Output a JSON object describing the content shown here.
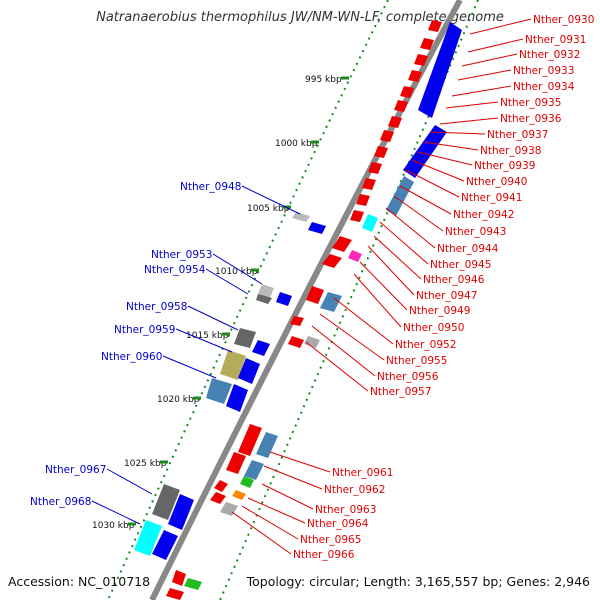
{
  "title": "Natranaerobius thermophilus JW/NM-WN-LF, complete genome",
  "accession": "Accession: NC_010718",
  "summary": "Topology: circular; Length: 3,165,557 bp; Genes: 2,946",
  "ticks": [
    "995 kbp",
    "1000 kbp",
    "1005 kbp",
    "1010 kbp",
    "1015 kbp",
    "1020 kbp",
    "1025 kbp",
    "1030 kbp"
  ],
  "right_labels": [
    "Nther_0930",
    "Nther_0931",
    "Nther_0932",
    "Nther_0933",
    "Nther_0934",
    "Nther_0935",
    "Nther_0936",
    "Nther_0937",
    "Nther_0938",
    "Nther_0939",
    "Nther_0940",
    "Nther_0941",
    "Nther_0942",
    "Nther_0943",
    "Nther_0944",
    "Nther_0945",
    "Nther_0946",
    "Nther_0947",
    "Nther_0949",
    "Nther_0950",
    "Nther_0952",
    "Nther_0955",
    "Nther_0956",
    "Nther_0957",
    "Nther_0961",
    "Nther_0962",
    "Nther_0963",
    "Nther_0964",
    "Nther_0965",
    "Nther_0966"
  ],
  "left_labels": [
    "Nther_0948",
    "Nther_0953",
    "Nther_0954",
    "Nther_0958",
    "Nther_0959",
    "Nther_0960",
    "Nther_0967",
    "Nther_0968"
  ],
  "colors": {
    "backbone": "#888888",
    "forward_gene": "#ee0000",
    "reverse_gene": "#0000ee",
    "cog_blue": "#4682b4",
    "cog_gray": "#666666",
    "cog_olive": "#b5ac5a",
    "cog_cyan": "#00ffff",
    "cog_magenta": "#ff2bb8",
    "cog_green": "#22bb22",
    "cog_orange": "#ff8800",
    "tick_dots": "#1b8a1b",
    "label_right": "#e00000",
    "label_left": "#0000cc"
  }
}
